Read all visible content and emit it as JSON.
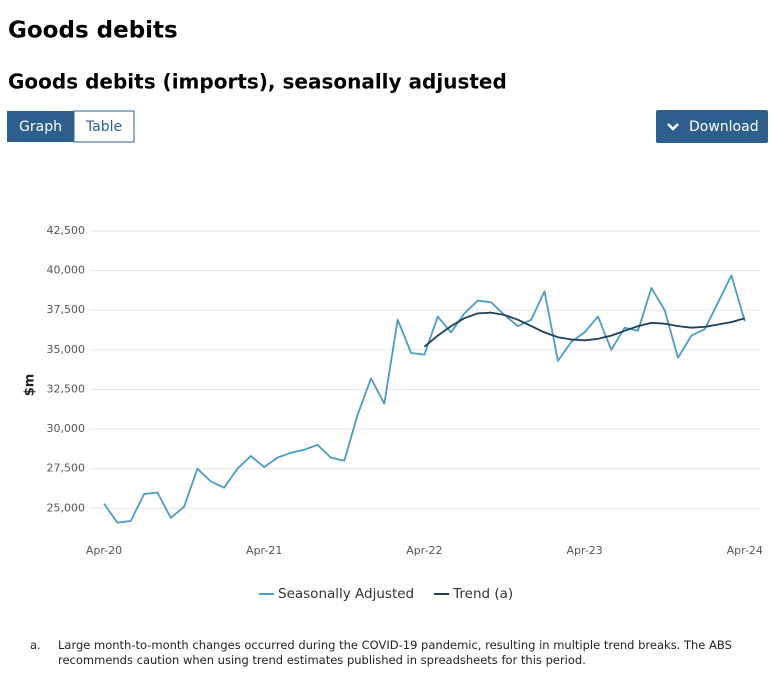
{
  "page_title": "Goods debits",
  "chart_heading": "Goods debits (imports), seasonally adjusted",
  "tabs": [
    "Graph",
    "Table"
  ],
  "download": "Download",
  "footnote": {
    "marker": "a.",
    "text": "Large month-to-month changes occurred during the COVID-19 pandemic, resulting in multiple trend breaks. The ABS recommends caution when using trend estimates published in spreadsheets for this period."
  },
  "chart_data": {
    "type": "line",
    "ylabel": "$m",
    "categories": [
      "Apr-20",
      null,
      null,
      null,
      null,
      null,
      null,
      null,
      null,
      null,
      null,
      null,
      "Apr-21",
      null,
      null,
      null,
      null,
      null,
      null,
      null,
      null,
      null,
      null,
      null,
      "Apr-22",
      null,
      null,
      null,
      null,
      null,
      null,
      null,
      null,
      null,
      null,
      null,
      "Apr-23",
      null,
      null,
      null,
      null,
      null,
      null,
      null,
      null,
      null,
      null,
      null,
      "Apr-24"
    ],
    "series": [
      {
        "name": "Seasonally Adjusted",
        "color": "#4a9cc4",
        "values": [
          25300,
          24100,
          24200,
          25900,
          26000,
          24400,
          25100,
          27500,
          26700,
          26300,
          27500,
          28300,
          27600,
          28200,
          28500,
          28700,
          29000,
          28200,
          28000,
          30900,
          33200,
          31600,
          36900,
          34800,
          34700,
          37100,
          36100,
          37300,
          38100,
          38000,
          37200,
          36500,
          36900,
          38700,
          34300,
          35500,
          36100,
          37100,
          35000,
          36400,
          36200,
          38900,
          37500,
          34500,
          35900,
          36300,
          38000,
          39700,
          36800
        ]
      },
      {
        "name": "Trend (a)",
        "color": "#1d3f5e",
        "values": [
          null,
          null,
          null,
          null,
          null,
          null,
          null,
          null,
          null,
          null,
          null,
          null,
          null,
          null,
          null,
          null,
          null,
          null,
          null,
          null,
          null,
          null,
          null,
          null,
          35200,
          35900,
          36500,
          37000,
          37300,
          37350,
          37200,
          36900,
          36500,
          36100,
          35800,
          35650,
          35600,
          35700,
          35900,
          36200,
          36500,
          36700,
          36650,
          36500,
          36400,
          36450,
          36600,
          36750,
          37000
        ]
      }
    ],
    "ylim": [
      23000,
      42500
    ],
    "yticks": [
      {
        "value": 25000,
        "label": "25,000"
      },
      {
        "value": 27500,
        "label": "27,500"
      },
      {
        "value": 30000,
        "label": "30,000"
      },
      {
        "value": 32500,
        "label": "32,500"
      },
      {
        "value": 35000,
        "label": "35,000"
      },
      {
        "value": 37500,
        "label": "37,500"
      },
      {
        "value": 40000,
        "label": "40,000"
      },
      {
        "value": 42500,
        "label": "42,500"
      }
    ],
    "grid": true
  }
}
